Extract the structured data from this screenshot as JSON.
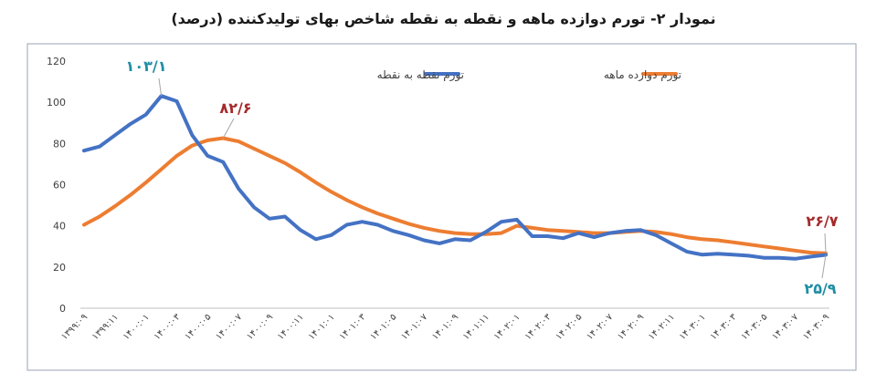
{
  "chart_data": {
    "type": "line",
    "title": "نمودار ۲- تورم دوازده ماهه و نقطه به نقطه شاخص بهای تولیدکننده (درصد)",
    "xlabel": "",
    "ylabel": "",
    "ylim": [
      0,
      120
    ],
    "yticks": [
      0,
      20,
      40,
      60,
      80,
      100,
      120
    ],
    "grid": false,
    "legend_position": "top",
    "x": [
      "۱۳۹۹:۰۹",
      "",
      "۱۳۹۹:۱۱",
      "",
      "۱۴۰۰:۰۱",
      "",
      "۱۴۰۰:۰۳",
      "",
      "۱۴۰۰:۰۵",
      "",
      "۱۴۰۰:۰۷",
      "",
      "۱۴۰۰:۰۹",
      "",
      "۱۴۰۰:۱۱",
      "",
      "۱۴۰۱:۰۱",
      "",
      "۱۴۰۱:۰۳",
      "",
      "۱۴۰۱:۰۵",
      "",
      "۱۴۰۱:۰۷",
      "",
      "۱۴۰۱:۰۹",
      "",
      "۱۴۰۱:۱۱",
      "",
      "۱۴۰۲:۰۱",
      "",
      "۱۴۰۲:۰۳",
      "",
      "۱۴۰۲:۰۵",
      "",
      "۱۴۰۲:۰۷",
      "",
      "۱۴۰۲:۰۹",
      "",
      "۱۴۰۲:۱۱",
      "",
      "۱۴۰۳:۰۱",
      "",
      "۱۴۰۳:۰۳",
      "",
      "۱۴۰۳:۰۵",
      "",
      "۱۴۰۳:۰۷",
      "",
      "۱۴۰۳:۰۹"
    ],
    "series": [
      {
        "name": "تورم نقطه به نقطه",
        "color": "#4472c4",
        "values": [
          76.5,
          78.5,
          84,
          89.5,
          94,
          103.1,
          100.5,
          84,
          74,
          71,
          58,
          49,
          43.5,
          44.5,
          38,
          33.5,
          35.5,
          40.5,
          42,
          40.5,
          37.5,
          35.5,
          33,
          31.5,
          33.5,
          33,
          37,
          42,
          43,
          35,
          35,
          34,
          36.5,
          34.5,
          36.5,
          37.5,
          38,
          35.5,
          31.5,
          27.5,
          26,
          26.5,
          26,
          25.5,
          24.5,
          24.5,
          24,
          25,
          25.9
        ]
      },
      {
        "name": "تورم دوازده ماهه",
        "color": "#ed7d31",
        "values": [
          40.5,
          44.5,
          49.5,
          55,
          61,
          67.5,
          74,
          79,
          81.5,
          82.6,
          81,
          77.5,
          74,
          70.5,
          66,
          61,
          56.5,
          52.5,
          49,
          46,
          43.5,
          41,
          39,
          37.5,
          36.5,
          36,
          36,
          36.5,
          40,
          39,
          38,
          37.5,
          37,
          36.5,
          36.5,
          37,
          37.5,
          37,
          36,
          34.5,
          33.5,
          33,
          32,
          31,
          30,
          29,
          28,
          27,
          26.7
        ]
      }
    ],
    "annotations": [
      {
        "text": "۱۰۳/۱",
        "color": "#1f8ea3"
      },
      {
        "text": "۸۲/۶",
        "color": "#a52a2a"
      },
      {
        "text": "۲۶/۷",
        "color": "#a52a2a"
      },
      {
        "text": "۲۵/۹",
        "color": "#1f8ea3"
      }
    ]
  }
}
